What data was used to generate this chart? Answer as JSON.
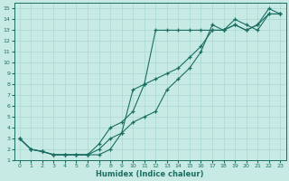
{
  "title": "",
  "xlabel": "Humidex (Indice chaleur)",
  "ylabel": "",
  "bg_color": "#c8eae4",
  "grid_color": "#a8d8d0",
  "line_color": "#1a6e62",
  "xlim": [
    -0.5,
    23.5
  ],
  "ylim": [
    1,
    15.5
  ],
  "line1_x": [
    0,
    1,
    2,
    3,
    4,
    5,
    6,
    7,
    8,
    9,
    10,
    11,
    12,
    13,
    14,
    15,
    16,
    17,
    18,
    19,
    20,
    21,
    22,
    23
  ],
  "line1_y": [
    3.0,
    2.0,
    1.8,
    1.5,
    1.5,
    1.5,
    1.5,
    1.5,
    2.0,
    3.5,
    7.5,
    8.0,
    13.0,
    13.0,
    13.0,
    13.0,
    13.0,
    13.0,
    13.0,
    13.5,
    13.0,
    13.5,
    15.0,
    14.5
  ],
  "line2_x": [
    0,
    1,
    2,
    3,
    4,
    5,
    6,
    7,
    8,
    9,
    10,
    11,
    12,
    13,
    14,
    15,
    16,
    17,
    18,
    19,
    20,
    21,
    22,
    23
  ],
  "line2_y": [
    3.0,
    2.0,
    1.8,
    1.5,
    1.5,
    1.5,
    1.5,
    2.5,
    4.0,
    4.5,
    5.5,
    8.0,
    8.5,
    9.0,
    9.5,
    10.5,
    11.5,
    13.0,
    13.0,
    13.5,
    13.0,
    13.5,
    14.5,
    14.5
  ],
  "line3_x": [
    0,
    1,
    2,
    3,
    4,
    5,
    6,
    7,
    8,
    9,
    10,
    11,
    12,
    13,
    14,
    15,
    16,
    17,
    18,
    19,
    20,
    21,
    22,
    23
  ],
  "line3_y": [
    3.0,
    2.0,
    1.8,
    1.5,
    1.5,
    1.5,
    1.5,
    2.0,
    3.0,
    3.5,
    4.5,
    5.0,
    5.5,
    7.5,
    8.5,
    9.5,
    11.0,
    13.5,
    13.0,
    14.0,
    13.5,
    13.0,
    14.5,
    14.5
  ],
  "yticks": [
    1,
    2,
    3,
    4,
    5,
    6,
    7,
    8,
    9,
    10,
    11,
    12,
    13,
    14,
    15
  ],
  "xticks": [
    0,
    1,
    2,
    3,
    4,
    5,
    6,
    7,
    8,
    9,
    10,
    11,
    12,
    13,
    14,
    15,
    16,
    17,
    18,
    19,
    20,
    21,
    22,
    23
  ]
}
